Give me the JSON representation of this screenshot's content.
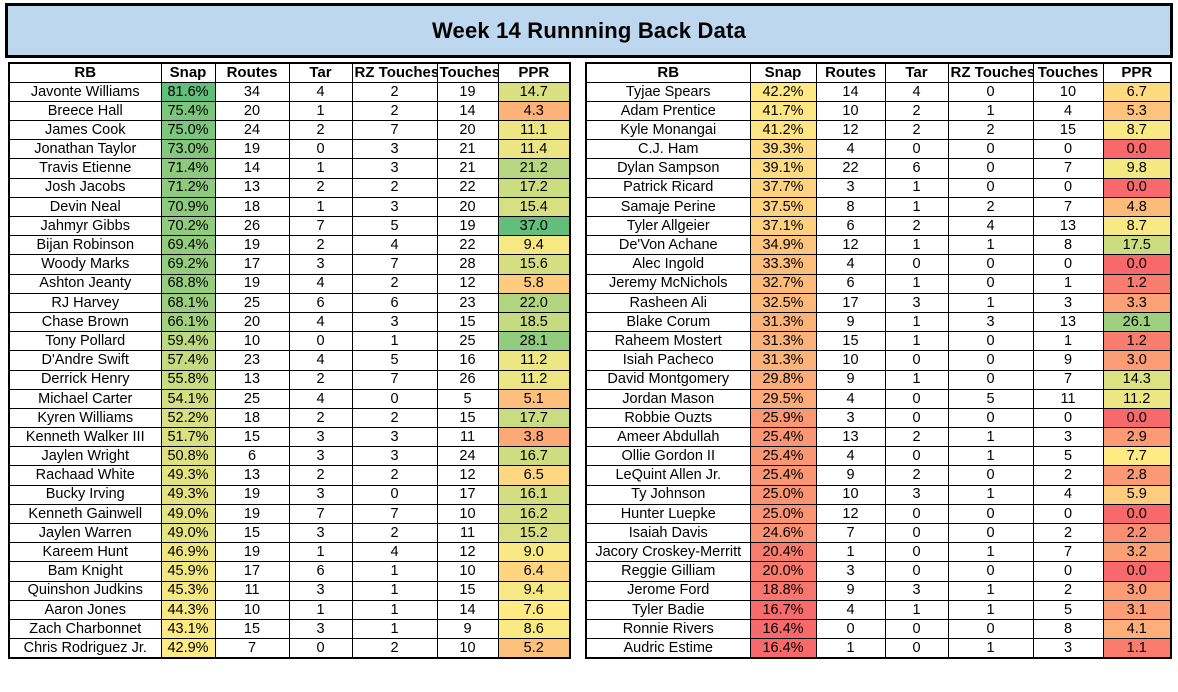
{
  "title": "Week 14 Runnning Back Data",
  "colors": {
    "title_bg": "#BDD7EE",
    "border": "#000000",
    "cell_bg": "#FFFFFF",
    "text": "#000000"
  },
  "chart_data": {
    "type": "table",
    "title": "Week 14 Runnning Back Data",
    "columns": [
      "RB",
      "Snap",
      "Routes",
      "Tar",
      "RZ Touches",
      "Touches",
      "PPR"
    ],
    "color_scale": {
      "applies_to_columns": [
        "Snap",
        "PPR"
      ],
      "min_color": "#F8696B",
      "mid_color": "#FFEB84",
      "max_color": "#63BE7B",
      "midpoint": "50th percentile across both tables combined"
    },
    "tables": [
      {
        "name": "left",
        "rows": [
          [
            "Javonte Williams",
            "81.6%",
            "34",
            "4",
            "2",
            "19",
            "14.7"
          ],
          [
            "Breece Hall",
            "75.4%",
            "20",
            "1",
            "2",
            "14",
            "4.3"
          ],
          [
            "James Cook",
            "75.0%",
            "24",
            "2",
            "7",
            "20",
            "11.1"
          ],
          [
            "Jonathan Taylor",
            "73.0%",
            "19",
            "0",
            "3",
            "21",
            "11.4"
          ],
          [
            "Travis Etienne",
            "71.4%",
            "14",
            "1",
            "3",
            "21",
            "21.2"
          ],
          [
            "Josh Jacobs",
            "71.2%",
            "13",
            "2",
            "2",
            "22",
            "17.2"
          ],
          [
            "Devin Neal",
            "70.9%",
            "18",
            "1",
            "3",
            "20",
            "15.4"
          ],
          [
            "Jahmyr Gibbs",
            "70.2%",
            "26",
            "7",
            "5",
            "19",
            "37.0"
          ],
          [
            "Bijan Robinson",
            "69.4%",
            "19",
            "2",
            "4",
            "22",
            "9.4"
          ],
          [
            "Woody Marks",
            "69.2%",
            "17",
            "3",
            "7",
            "28",
            "15.6"
          ],
          [
            "Ashton Jeanty",
            "68.8%",
            "19",
            "4",
            "2",
            "12",
            "5.8"
          ],
          [
            "RJ Harvey",
            "68.1%",
            "25",
            "6",
            "6",
            "23",
            "22.0"
          ],
          [
            "Chase Brown",
            "66.1%",
            "20",
            "4",
            "3",
            "15",
            "18.5"
          ],
          [
            "Tony Pollard",
            "59.4%",
            "10",
            "0",
            "1",
            "25",
            "28.1"
          ],
          [
            "D'Andre Swift",
            "57.4%",
            "23",
            "4",
            "5",
            "16",
            "11.2"
          ],
          [
            "Derrick Henry",
            "55.8%",
            "13",
            "2",
            "7",
            "26",
            "11.2"
          ],
          [
            "Michael Carter",
            "54.1%",
            "25",
            "4",
            "0",
            "5",
            "5.1"
          ],
          [
            "Kyren Williams",
            "52.2%",
            "18",
            "2",
            "2",
            "15",
            "17.7"
          ],
          [
            "Kenneth Walker III",
            "51.7%",
            "15",
            "3",
            "3",
            "11",
            "3.8"
          ],
          [
            "Jaylen Wright",
            "50.8%",
            "6",
            "3",
            "3",
            "24",
            "16.7"
          ],
          [
            "Rachaad White",
            "49.3%",
            "13",
            "2",
            "2",
            "12",
            "6.5"
          ],
          [
            "Bucky Irving",
            "49.3%",
            "19",
            "3",
            "0",
            "17",
            "16.1"
          ],
          [
            "Kenneth Gainwell",
            "49.0%",
            "19",
            "7",
            "7",
            "10",
            "16.2"
          ],
          [
            "Jaylen Warren",
            "49.0%",
            "15",
            "3",
            "2",
            "11",
            "15.2"
          ],
          [
            "Kareem Hunt",
            "46.9%",
            "19",
            "1",
            "4",
            "12",
            "9.0"
          ],
          [
            "Bam Knight",
            "45.9%",
            "17",
            "6",
            "1",
            "10",
            "6.4"
          ],
          [
            "Quinshon Judkins",
            "45.3%",
            "11",
            "3",
            "1",
            "15",
            "9.4"
          ],
          [
            "Aaron Jones",
            "44.3%",
            "10",
            "1",
            "1",
            "14",
            "7.6"
          ],
          [
            "Zach Charbonnet",
            "43.1%",
            "15",
            "3",
            "1",
            "9",
            "8.6"
          ],
          [
            "Chris Rodriguez Jr.",
            "42.9%",
            "7",
            "0",
            "2",
            "10",
            "5.2"
          ]
        ]
      },
      {
        "name": "right",
        "rows": [
          [
            "Tyjae Spears",
            "42.2%",
            "14",
            "4",
            "0",
            "10",
            "6.7"
          ],
          [
            "Adam Prentice",
            "41.7%",
            "10",
            "2",
            "1",
            "4",
            "5.3"
          ],
          [
            "Kyle Monangai",
            "41.2%",
            "12",
            "2",
            "2",
            "15",
            "8.7"
          ],
          [
            "C.J. Ham",
            "39.3%",
            "4",
            "0",
            "0",
            "0",
            "0.0"
          ],
          [
            "Dylan Sampson",
            "39.1%",
            "22",
            "6",
            "0",
            "7",
            "9.8"
          ],
          [
            "Patrick Ricard",
            "37.7%",
            "3",
            "1",
            "0",
            "0",
            "0.0"
          ],
          [
            "Samaje Perine",
            "37.5%",
            "8",
            "1",
            "2",
            "7",
            "4.8"
          ],
          [
            "Tyler Allgeier",
            "37.1%",
            "6",
            "2",
            "4",
            "13",
            "8.7"
          ],
          [
            "De'Von Achane",
            "34.9%",
            "12",
            "1",
            "1",
            "8",
            "17.5"
          ],
          [
            "Alec Ingold",
            "33.3%",
            "4",
            "0",
            "0",
            "0",
            "0.0"
          ],
          [
            "Jeremy McNichols",
            "32.7%",
            "6",
            "1",
            "0",
            "1",
            "1.2"
          ],
          [
            "Rasheen Ali",
            "32.5%",
            "17",
            "3",
            "1",
            "3",
            "3.3"
          ],
          [
            "Blake Corum",
            "31.3%",
            "9",
            "1",
            "3",
            "13",
            "26.1"
          ],
          [
            "Raheem Mostert",
            "31.3%",
            "15",
            "1",
            "0",
            "1",
            "1.2"
          ],
          [
            "Isiah Pacheco",
            "31.3%",
            "10",
            "0",
            "0",
            "9",
            "3.0"
          ],
          [
            "David Montgomery",
            "29.8%",
            "9",
            "1",
            "0",
            "7",
            "14.3"
          ],
          [
            "Jordan Mason",
            "29.5%",
            "4",
            "0",
            "5",
            "11",
            "11.2"
          ],
          [
            "Robbie Ouzts",
            "25.9%",
            "3",
            "0",
            "0",
            "0",
            "0.0"
          ],
          [
            "Ameer Abdullah",
            "25.4%",
            "13",
            "2",
            "1",
            "3",
            "2.9"
          ],
          [
            "Ollie Gordon II",
            "25.4%",
            "4",
            "0",
            "1",
            "5",
            "7.7"
          ],
          [
            "LeQuint Allen Jr.",
            "25.4%",
            "9",
            "2",
            "0",
            "2",
            "2.8"
          ],
          [
            "Ty Johnson",
            "25.0%",
            "10",
            "3",
            "1",
            "4",
            "5.9"
          ],
          [
            "Hunter Luepke",
            "25.0%",
            "12",
            "0",
            "0",
            "0",
            "0.0"
          ],
          [
            "Isaiah Davis",
            "24.6%",
            "7",
            "0",
            "0",
            "2",
            "2.2"
          ],
          [
            "Jacory Croskey-Merritt",
            "20.4%",
            "1",
            "0",
            "1",
            "7",
            "3.2"
          ],
          [
            "Reggie Gilliam",
            "20.0%",
            "3",
            "0",
            "0",
            "0",
            "0.0"
          ],
          [
            "Jerome Ford",
            "18.8%",
            "9",
            "3",
            "1",
            "2",
            "3.0"
          ],
          [
            "Tyler Badie",
            "16.7%",
            "4",
            "1",
            "1",
            "5",
            "3.1"
          ],
          [
            "Ronnie Rivers",
            "16.4%",
            "0",
            "0",
            "0",
            "8",
            "4.1"
          ],
          [
            "Audric Estime",
            "16.4%",
            "1",
            "0",
            "1",
            "3",
            "1.1"
          ]
        ]
      }
    ]
  }
}
